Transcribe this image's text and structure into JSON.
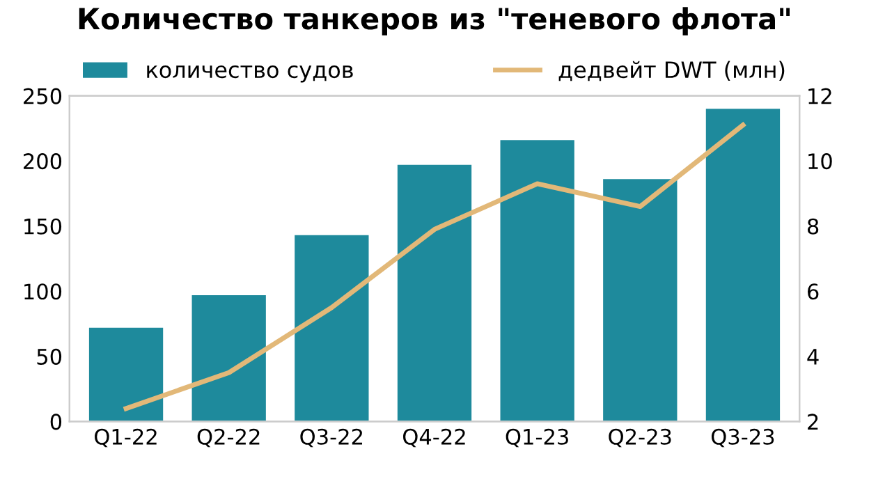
{
  "chart_data": {
    "type": "bar",
    "title": "Количество танкеров из \"теневого флота\"",
    "categories": [
      "Q1-22",
      "Q2-22",
      "Q3-22",
      "Q4-22",
      "Q1-23",
      "Q2-23",
      "Q3-23"
    ],
    "series": [
      {
        "name": "количество судов",
        "color": "#1e8a9c",
        "values": [
          72,
          97,
          143,
          197,
          216,
          186,
          240
        ]
      },
      {
        "name": "дедвейт DWT (млн)",
        "type": "line",
        "axis": "y2",
        "color": "#e2b878",
        "values": [
          2.4,
          3.5,
          5.5,
          7.9,
          9.3,
          8.6,
          11.1
        ]
      }
    ],
    "ylim": [
      0,
      250
    ],
    "yticks": [
      0,
      50,
      100,
      150,
      200,
      250
    ],
    "y2lim": [
      2,
      12
    ],
    "y2ticks": [
      2,
      4,
      6,
      8,
      10,
      12
    ],
    "grid": false,
    "legend": "top"
  }
}
